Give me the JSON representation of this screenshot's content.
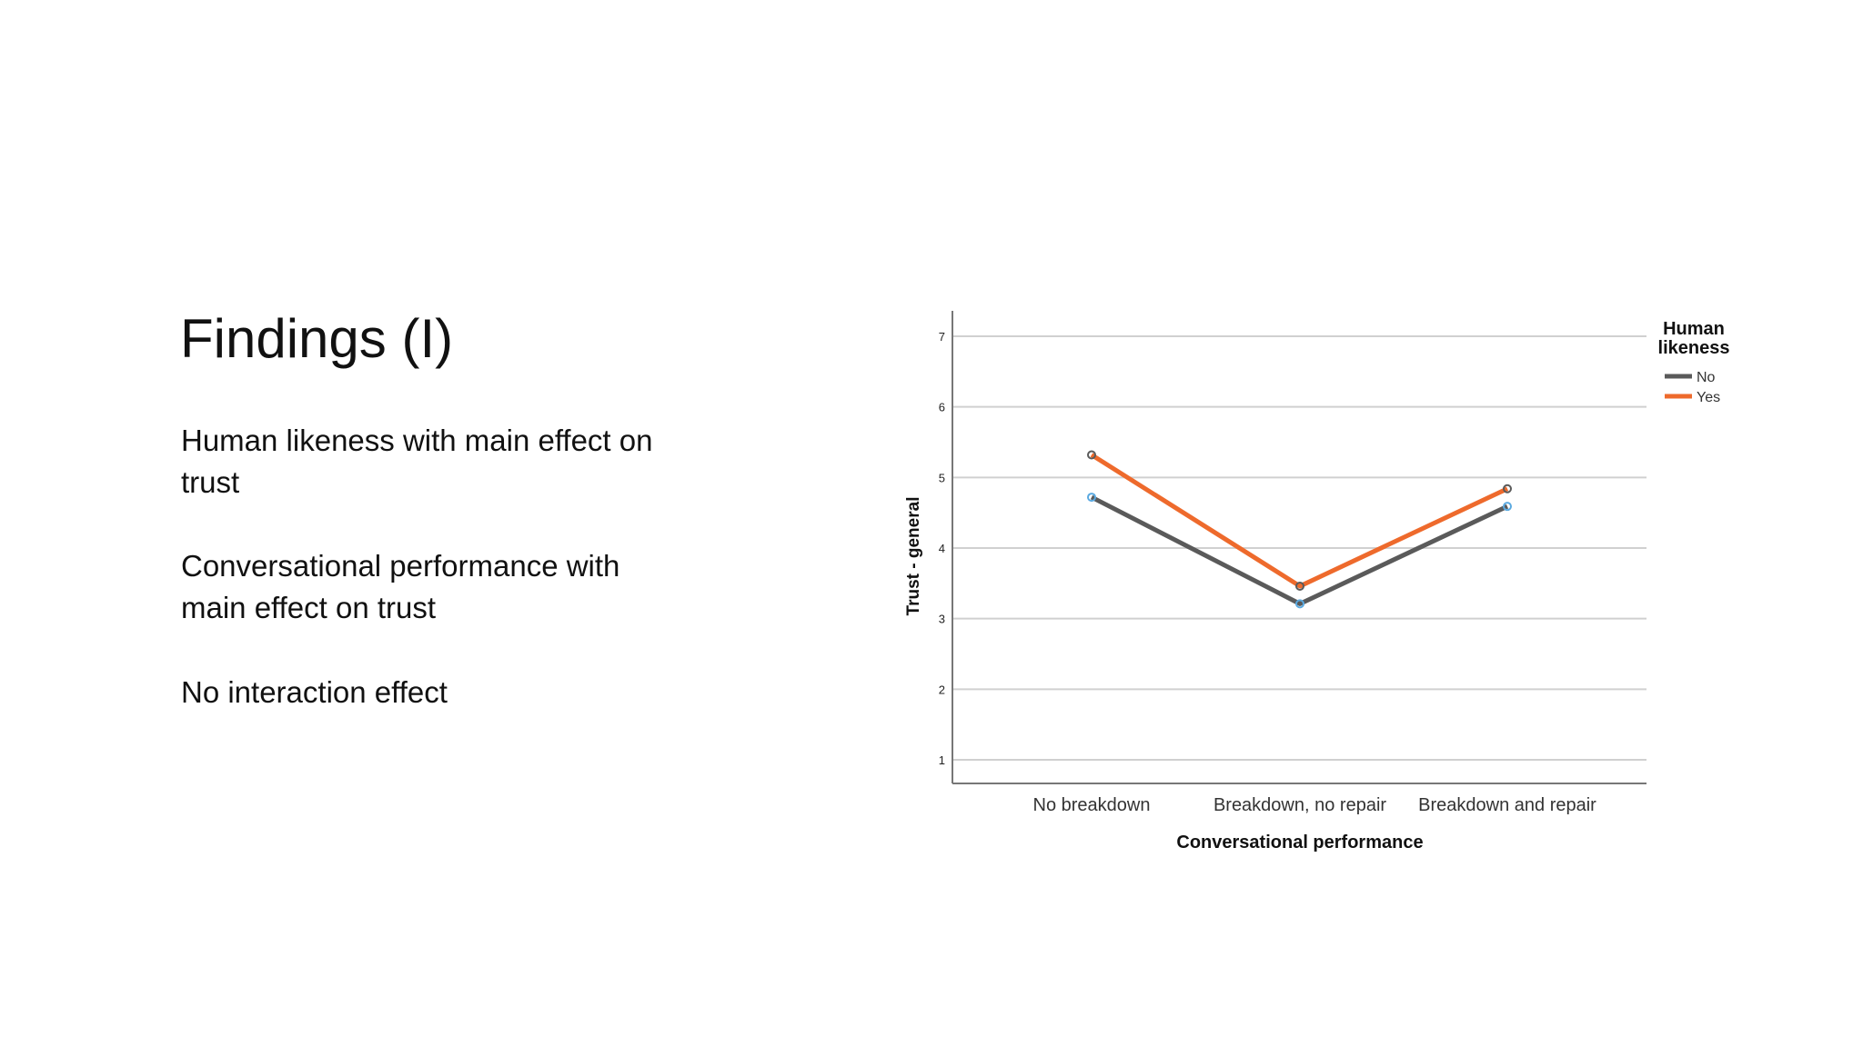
{
  "slide": {
    "title": "Findings (I)",
    "points": [
      "Human likeness with main effect on trust",
      "Conversational performance with main effect on trust",
      "No interaction effect"
    ]
  },
  "chart_data": {
    "type": "line",
    "title": "",
    "xlabel": "Conversational performance",
    "ylabel": "Trust - general",
    "categories": [
      "No breakdown",
      "Breakdown, no repair",
      "Breakdown and repair"
    ],
    "yticks": [
      "1",
      "2",
      "3",
      "4",
      "5",
      "6",
      "7"
    ],
    "ylim": [
      0.7,
      7.3
    ],
    "grid": true,
    "legend": {
      "title": "Human likeness",
      "placement": "top-right"
    },
    "series": [
      {
        "name": "No",
        "color": "#5a5a5a",
        "marker": "#5aa9e0",
        "values": [
          4.72,
          3.21,
          4.59
        ]
      },
      {
        "name": "Yes",
        "color": "#ee6a2c",
        "marker": "#5a5a5a",
        "values": [
          5.32,
          3.46,
          4.84
        ]
      }
    ]
  }
}
